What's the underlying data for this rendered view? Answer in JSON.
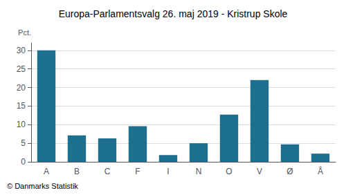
{
  "chart_data": {
    "type": "bar",
    "title": "Europa-Parlamentsvalg 26. maj 2019 - Kristrup Skole",
    "categories": [
      "A",
      "B",
      "C",
      "F",
      "I",
      "N",
      "O",
      "V",
      "Ø",
      "Å"
    ],
    "values": [
      30.0,
      7.1,
      6.3,
      9.6,
      1.8,
      5.0,
      12.7,
      22.0,
      4.7,
      2.2
    ],
    "color": "#1c6f8e",
    "ylabel": "Pct.",
    "ylim": [
      0,
      32
    ],
    "yticks": [
      0,
      5,
      10,
      15,
      20,
      25,
      30
    ],
    "grid": true,
    "annotations": [
      "© Danmarks Statistik"
    ]
  }
}
